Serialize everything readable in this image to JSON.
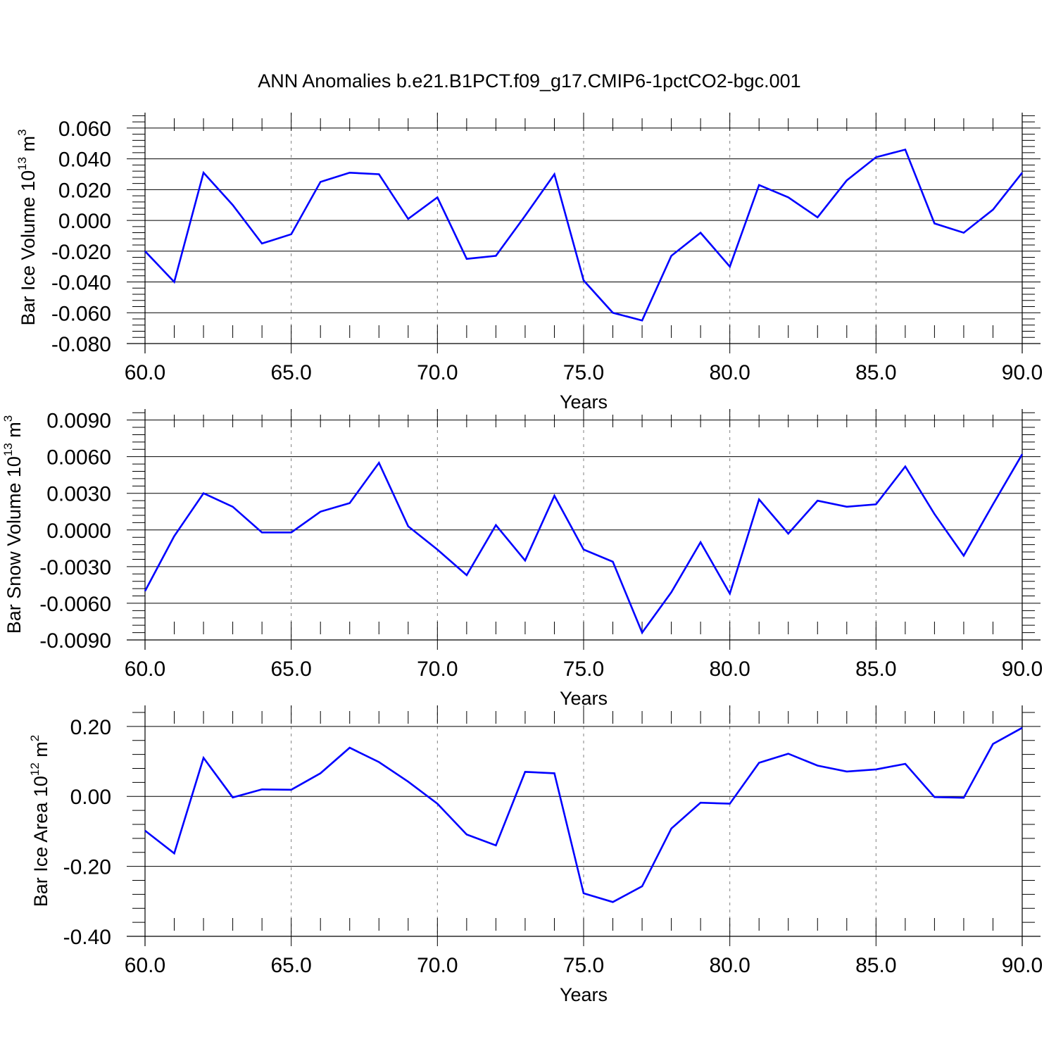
{
  "title": "ANN Anomalies b.e21.B1PCT.f09_g17.CMIP6-1pctCO2-bgc.001",
  "colors": {
    "line": "#0000ff",
    "axis": "#000000",
    "grid": "#7f7f7f",
    "background": "#ffffff"
  },
  "chart_data": [
    {
      "type": "line",
      "xlabel": "Years",
      "ylabel": {
        "text": "Bar Ice Volume 10",
        "exponent": "13",
        "unit": " m",
        "unit_exponent": "3"
      },
      "xlim": [
        60,
        90
      ],
      "ylim": [
        -0.08,
        0.07
      ],
      "xticks": [
        60,
        65,
        70,
        75,
        80,
        85,
        90
      ],
      "xtick_labels": [
        "60.0",
        "65.0",
        "70.0",
        "75.0",
        "80.0",
        "85.0",
        "90.0"
      ],
      "yticks": [
        -0.08,
        -0.06,
        -0.04,
        -0.02,
        0.0,
        0.02,
        0.04,
        0.06
      ],
      "ytick_labels": [
        "-0.080",
        "-0.060",
        "-0.040",
        "-0.020",
        "0.000",
        "0.020",
        "0.040",
        "0.060"
      ],
      "grid": "vertical-dashed",
      "x": [
        60,
        61,
        62,
        63,
        64,
        65,
        66,
        67,
        68,
        69,
        70,
        71,
        72,
        73,
        74,
        75,
        76,
        77,
        78,
        79,
        80,
        81,
        82,
        83,
        84,
        85,
        86,
        87,
        88,
        89,
        90
      ],
      "y": [
        -0.02,
        -0.04,
        0.031,
        0.01,
        -0.015,
        -0.009,
        0.025,
        0.031,
        0.03,
        0.001,
        0.015,
        -0.025,
        -0.023,
        0.003,
        0.03,
        -0.039,
        -0.06,
        -0.065,
        -0.023,
        -0.008,
        -0.03,
        0.023,
        0.015,
        0.002,
        0.026,
        0.041,
        0.046,
        -0.002,
        -0.008,
        0.007,
        0.031
      ]
    },
    {
      "type": "line",
      "xlabel": "Years",
      "ylabel": {
        "text": "Bar Snow Volume 10",
        "exponent": "13",
        "unit": " m",
        "unit_exponent": "3"
      },
      "xlim": [
        60,
        90
      ],
      "ylim": [
        -0.009,
        0.0099
      ],
      "xticks": [
        60,
        65,
        70,
        75,
        80,
        85,
        90
      ],
      "xtick_labels": [
        "60.0",
        "65.0",
        "70.0",
        "75.0",
        "80.0",
        "85.0",
        "90.0"
      ],
      "yticks": [
        -0.009,
        -0.006,
        -0.003,
        0.0,
        0.003,
        0.006,
        0.009
      ],
      "ytick_labels": [
        "-0.0090",
        "-0.0060",
        "-0.0030",
        "0.0000",
        "0.0030",
        "0.0060",
        "0.0090"
      ],
      "grid": "vertical-dashed",
      "x": [
        60,
        61,
        62,
        63,
        64,
        65,
        66,
        67,
        68,
        69,
        70,
        71,
        72,
        73,
        74,
        75,
        76,
        77,
        78,
        79,
        80,
        81,
        82,
        83,
        84,
        85,
        86,
        87,
        88,
        89,
        90
      ],
      "y": [
        -0.005,
        -0.0005,
        0.003,
        0.0019,
        -0.0002,
        -0.0002,
        0.0015,
        0.0022,
        0.0055,
        0.0003,
        -0.0016,
        -0.0037,
        0.0004,
        -0.0025,
        0.0028,
        -0.0016,
        -0.0026,
        -0.0084,
        -0.0051,
        -0.001,
        -0.0052,
        0.0025,
        -0.0003,
        0.0024,
        0.0019,
        0.0021,
        0.0052,
        0.0013,
        -0.0021,
        0.0021,
        0.0062
      ]
    },
    {
      "type": "line",
      "xlabel": "Years",
      "ylabel": {
        "text": "Bar Ice Area 10",
        "exponent": "12",
        "unit": " m",
        "unit_exponent": "2"
      },
      "xlim": [
        60,
        90
      ],
      "ylim": [
        -0.4,
        0.26
      ],
      "xticks": [
        60,
        65,
        70,
        75,
        80,
        85,
        90
      ],
      "xtick_labels": [
        "60.0",
        "65.0",
        "70.0",
        "75.0",
        "80.0",
        "85.0",
        "90.0"
      ],
      "yticks": [
        -0.4,
        -0.2,
        0.0,
        0.2
      ],
      "ytick_labels": [
        "-0.40",
        "-0.20",
        "0.00",
        "0.20"
      ],
      "grid": "vertical-dashed",
      "x": [
        60,
        61,
        62,
        63,
        64,
        65,
        66,
        67,
        68,
        69,
        70,
        71,
        72,
        73,
        74,
        75,
        76,
        77,
        78,
        79,
        80,
        81,
        82,
        83,
        84,
        85,
        86,
        87,
        88,
        89,
        90
      ],
      "y": [
        -0.098,
        -0.163,
        0.11,
        -0.003,
        0.02,
        0.019,
        0.066,
        0.139,
        0.098,
        0.042,
        -0.021,
        -0.109,
        -0.14,
        0.07,
        0.066,
        -0.277,
        -0.302,
        -0.257,
        -0.092,
        -0.018,
        -0.021,
        0.096,
        0.122,
        0.088,
        0.071,
        0.077,
        0.093,
        -0.002,
        -0.004,
        0.15,
        0.196
      ]
    }
  ]
}
